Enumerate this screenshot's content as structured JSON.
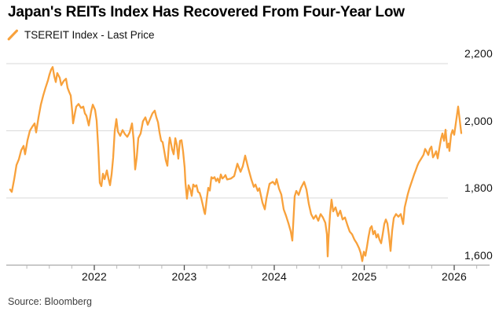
{
  "header": {
    "title": "Japan's REITs Index Has Recovered From Four-Year Low",
    "legend_label": "TSEREIT Index - Last Price",
    "legend_icon": "line-series-slash-icon"
  },
  "footer": {
    "source": "Source: Bloomberg"
  },
  "colors": {
    "series_orange": "#f8a13b",
    "gridline": "#d9d9d9",
    "axis_line": "#a9a9a9",
    "major_tick": "#4d4d4d",
    "minor_tick": "#b8b8b8",
    "label_text": "#121212"
  },
  "chart_data": {
    "type": "line",
    "title": "Japan's REITs Index Has Recovered From Four-Year Low",
    "xlabel": "",
    "ylabel": "",
    "grid": "horizontal",
    "legend_position": "top-left",
    "x_axis": {
      "major_ticks": [
        2022,
        2023,
        2024,
        2025,
        2026
      ],
      "major_tick_labels": [
        "2022",
        "2023",
        "2024",
        "2025",
        "2026"
      ],
      "minor_tick_interval_years": 0.25,
      "range": [
        2021.02,
        2026.39
      ]
    },
    "y_axis": {
      "side": "right",
      "ticks": [
        1600,
        1800,
        2000,
        2200
      ],
      "tick_labels": [
        "1,600",
        "1,800",
        "2,000",
        "2,200"
      ],
      "range": [
        1600,
        2262
      ]
    },
    "series": [
      {
        "name": "TSEREIT Index - Last Price",
        "color": "#f8a13b",
        "points": [
          [
            2021.065,
            1825
          ],
          [
            2021.083,
            1818
          ],
          [
            2021.109,
            1855
          ],
          [
            2021.135,
            1898
          ],
          [
            2021.162,
            1915
          ],
          [
            2021.188,
            1942
          ],
          [
            2021.214,
            1955
          ],
          [
            2021.231,
            1930
          ],
          [
            2021.258,
            1972
          ],
          [
            2021.284,
            2000
          ],
          [
            2021.31,
            2012
          ],
          [
            2021.336,
            2022
          ],
          [
            2021.354,
            1995
          ],
          [
            2021.38,
            2040
          ],
          [
            2021.406,
            2078
          ],
          [
            2021.432,
            2105
          ],
          [
            2021.458,
            2128
          ],
          [
            2021.485,
            2150
          ],
          [
            2021.502,
            2168
          ],
          [
            2021.52,
            2182
          ],
          [
            2021.537,
            2190
          ],
          [
            2021.555,
            2163
          ],
          [
            2021.572,
            2145
          ],
          [
            2021.589,
            2172
          ],
          [
            2021.616,
            2158
          ],
          [
            2021.633,
            2136
          ],
          [
            2021.659,
            2148
          ],
          [
            2021.686,
            2155
          ],
          [
            2021.703,
            2128
          ],
          [
            2021.721,
            2115
          ],
          [
            2021.738,
            2105
          ],
          [
            2021.755,
            2058
          ],
          [
            2021.764,
            2022
          ],
          [
            2021.782,
            2048
          ],
          [
            2021.799,
            2072
          ],
          [
            2021.825,
            2080
          ],
          [
            2021.852,
            2068
          ],
          [
            2021.878,
            2072
          ],
          [
            2021.895,
            2052
          ],
          [
            2021.913,
            2045
          ],
          [
            2021.939,
            2016
          ],
          [
            2021.965,
            2058
          ],
          [
            2021.983,
            2078
          ],
          [
            2022.009,
            2062
          ],
          [
            2022.026,
            2030
          ],
          [
            2022.044,
            1950
          ],
          [
            2022.061,
            1845
          ],
          [
            2022.079,
            1835
          ],
          [
            2022.096,
            1872
          ],
          [
            2022.114,
            1856
          ],
          [
            2022.14,
            1882
          ],
          [
            2022.157,
            1858
          ],
          [
            2022.175,
            1838
          ],
          [
            2022.192,
            1870
          ],
          [
            2022.21,
            1920
          ],
          [
            2022.227,
            2000
          ],
          [
            2022.245,
            2035
          ],
          [
            2022.262,
            1998
          ],
          [
            2022.288,
            1985
          ],
          [
            2022.314,
            2002
          ],
          [
            2022.341,
            1990
          ],
          [
            2022.367,
            1982
          ],
          [
            2022.393,
            1995
          ],
          [
            2022.419,
            2022
          ],
          [
            2022.437,
            1975
          ],
          [
            2022.454,
            1885
          ],
          [
            2022.472,
            1920
          ],
          [
            2022.489,
            1978
          ],
          [
            2022.515,
            1992
          ],
          [
            2022.541,
            2028
          ],
          [
            2022.568,
            2040
          ],
          [
            2022.594,
            2018
          ],
          [
            2022.62,
            2035
          ],
          [
            2022.646,
            2052
          ],
          [
            2022.672,
            2060
          ],
          [
            2022.69,
            2040
          ],
          [
            2022.708,
            2025
          ],
          [
            2022.725,
            1995
          ],
          [
            2022.743,
            1970
          ],
          [
            2022.76,
            1966
          ],
          [
            2022.777,
            1940
          ],
          [
            2022.795,
            1912
          ],
          [
            2022.812,
            1896
          ],
          [
            2022.83,
            1960
          ],
          [
            2022.838,
            1980
          ],
          [
            2022.847,
            1970
          ],
          [
            2022.865,
            1945
          ],
          [
            2022.882,
            1930
          ],
          [
            2022.9,
            1978
          ],
          [
            2022.917,
            1958
          ],
          [
            2022.934,
            1917
          ],
          [
            2022.952,
            1970
          ],
          [
            2022.969,
            1972
          ],
          [
            2022.987,
            1938
          ],
          [
            2023.004,
            1890
          ],
          [
            2023.013,
            1845
          ],
          [
            2023.03,
            1798
          ],
          [
            2023.048,
            1838
          ],
          [
            2023.066,
            1826
          ],
          [
            2023.083,
            1806
          ],
          [
            2023.1,
            1840
          ],
          [
            2023.118,
            1834
          ],
          [
            2023.135,
            1838
          ],
          [
            2023.153,
            1818
          ],
          [
            2023.17,
            1815
          ],
          [
            2023.188,
            1800
          ],
          [
            2023.205,
            1780
          ],
          [
            2023.223,
            1758
          ],
          [
            2023.231,
            1752
          ],
          [
            2023.249,
            1795
          ],
          [
            2023.266,
            1830
          ],
          [
            2023.284,
            1822
          ],
          [
            2023.301,
            1862
          ],
          [
            2023.319,
            1858
          ],
          [
            2023.336,
            1862
          ],
          [
            2023.354,
            1850
          ],
          [
            2023.371,
            1858
          ],
          [
            2023.389,
            1846
          ],
          [
            2023.406,
            1870
          ],
          [
            2023.424,
            1858
          ],
          [
            2023.441,
            1862
          ],
          [
            2023.458,
            1868
          ],
          [
            2023.476,
            1855
          ],
          [
            2023.52,
            1858
          ],
          [
            2023.555,
            1865
          ],
          [
            2023.59,
            1902
          ],
          [
            2023.625,
            1878
          ],
          [
            2023.651,
            1895
          ],
          [
            2023.677,
            1926
          ],
          [
            2023.712,
            1888
          ],
          [
            2023.747,
            1854
          ],
          [
            2023.773,
            1833
          ],
          [
            2023.791,
            1840
          ],
          [
            2023.817,
            1821
          ],
          [
            2023.834,
            1829
          ],
          [
            2023.869,
            1786
          ],
          [
            2023.895,
            1766
          ],
          [
            2023.913,
            1798
          ],
          [
            2023.948,
            1842
          ],
          [
            2023.983,
            1848
          ],
          [
            2024.009,
            1840
          ],
          [
            2024.026,
            1856
          ],
          [
            2024.052,
            1828
          ],
          [
            2024.079,
            1810
          ],
          [
            2024.105,
            1766
          ],
          [
            2024.131,
            1747
          ],
          [
            2024.157,
            1725
          ],
          [
            2024.183,
            1700
          ],
          [
            2024.201,
            1673
          ],
          [
            2024.227,
            1805
          ],
          [
            2024.245,
            1821
          ],
          [
            2024.271,
            1809
          ],
          [
            2024.297,
            1830
          ],
          [
            2024.332,
            1848
          ],
          [
            2024.358,
            1825
          ],
          [
            2024.384,
            1782
          ],
          [
            2024.41,
            1752
          ],
          [
            2024.437,
            1738
          ],
          [
            2024.463,
            1748
          ],
          [
            2024.489,
            1732
          ],
          [
            2024.515,
            1752
          ],
          [
            2024.541,
            1742
          ],
          [
            2024.568,
            1726
          ],
          [
            2024.585,
            1692
          ],
          [
            2024.594,
            1626
          ],
          [
            2024.603,
            1678
          ],
          [
            2024.62,
            1752
          ],
          [
            2024.637,
            1795
          ],
          [
            2024.655,
            1760
          ],
          [
            2024.681,
            1772
          ],
          [
            2024.707,
            1746
          ],
          [
            2024.734,
            1762
          ],
          [
            2024.76,
            1736
          ],
          [
            2024.786,
            1742
          ],
          [
            2024.812,
            1720
          ],
          [
            2024.838,
            1700
          ],
          [
            2024.865,
            1692
          ],
          [
            2024.891,
            1676
          ],
          [
            2024.917,
            1665
          ],
          [
            2024.943,
            1650
          ],
          [
            2024.961,
            1636
          ],
          [
            2024.978,
            1612
          ],
          [
            2024.996,
            1640
          ],
          [
            2025.013,
            1628
          ],
          [
            2025.031,
            1655
          ],
          [
            2025.048,
            1685
          ],
          [
            2025.066,
            1710
          ],
          [
            2025.083,
            1716
          ],
          [
            2025.1,
            1692
          ],
          [
            2025.118,
            1702
          ],
          [
            2025.135,
            1682
          ],
          [
            2025.153,
            1692
          ],
          [
            2025.17,
            1675
          ],
          [
            2025.188,
            1665
          ],
          [
            2025.205,
            1692
          ],
          [
            2025.223,
            1722
          ],
          [
            2025.24,
            1736
          ],
          [
            2025.258,
            1724
          ],
          [
            2025.275,
            1688
          ],
          [
            2025.293,
            1642
          ],
          [
            2025.31,
            1702
          ],
          [
            2025.328,
            1740
          ],
          [
            2025.354,
            1752
          ],
          [
            2025.38,
            1744
          ],
          [
            2025.406,
            1752
          ],
          [
            2025.432,
            1722
          ],
          [
            2025.45,
            1772
          ],
          [
            2025.467,
            1792
          ],
          [
            2025.485,
            1812
          ],
          [
            2025.502,
            1828
          ],
          [
            2025.52,
            1842
          ],
          [
            2025.537,
            1856
          ],
          [
            2025.555,
            1870
          ],
          [
            2025.572,
            1882
          ],
          [
            2025.59,
            1896
          ],
          [
            2025.607,
            1906
          ],
          [
            2025.624,
            1913
          ],
          [
            2025.642,
            1921
          ],
          [
            2025.659,
            1929
          ],
          [
            2025.677,
            1946
          ],
          [
            2025.694,
            1938
          ],
          [
            2025.712,
            1928
          ],
          [
            2025.729,
            1946
          ],
          [
            2025.747,
            1953
          ],
          [
            2025.764,
            1921
          ],
          [
            2025.782,
            1929
          ],
          [
            2025.799,
            1939
          ],
          [
            2025.817,
            1918
          ],
          [
            2025.834,
            1946
          ],
          [
            2025.852,
            1975
          ],
          [
            2025.869,
            1992
          ],
          [
            2025.887,
            1970
          ],
          [
            2025.904,
            2003
          ],
          [
            2025.921,
            1950
          ],
          [
            2025.939,
            1962
          ],
          [
            2025.947,
            1940
          ],
          [
            2025.965,
            1988
          ],
          [
            2025.982,
            2002
          ],
          [
            2026.0,
            1988
          ],
          [
            2026.017,
            2020
          ],
          [
            2026.035,
            2055
          ],
          [
            2026.044,
            2072
          ],
          [
            2026.061,
            2032
          ],
          [
            2026.079,
            1993
          ]
        ]
      }
    ]
  }
}
